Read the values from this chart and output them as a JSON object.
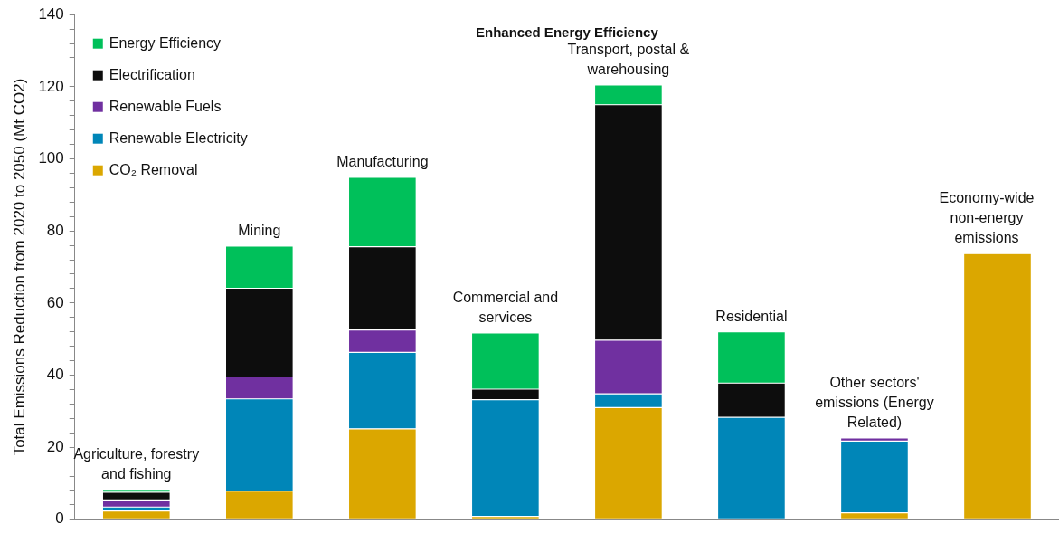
{
  "chart_data": {
    "type": "bar",
    "stacked": true,
    "title": "Enhanced Energy Efficiency",
    "ylabel": "Total Emissions Reduction from 2020 to 2050 (Mt CO2)",
    "categories": [
      "Agriculture, forestry and fishing",
      "Mining",
      "Manufacturing",
      "Commercial and services",
      "Transport, postal & warehousing",
      "Residential",
      "Other sectors' emissions (Energy Related)",
      "Economy-wide non-energy emissions"
    ],
    "series": [
      {
        "name": "CO₂ Removal",
        "color": "#dba700",
        "values": [
          2.3,
          7.8,
          25.1,
          0.8,
          31.0,
          0,
          1.8,
          73.7
        ]
      },
      {
        "name": "Renewable Electricity",
        "color": "#0086b8",
        "values": [
          1.1,
          25.6,
          21.2,
          32.4,
          3.8,
          28.3,
          19.9,
          0
        ]
      },
      {
        "name": "Renewable Fuels",
        "color": "#7030a0",
        "values": [
          2.0,
          6.1,
          6.2,
          0,
          14.9,
          0,
          0.9,
          0
        ]
      },
      {
        "name": "Electrification",
        "color": "#0d0d0d",
        "values": [
          2.1,
          24.6,
          23.1,
          2.9,
          65.3,
          9.5,
          0,
          0
        ]
      },
      {
        "name": "Energy Efficiency",
        "color": "#00c05a",
        "values": [
          0.8,
          11.7,
          19.3,
          15.6,
          5.5,
          14.2,
          0,
          0
        ]
      }
    ],
    "ylim": [
      0,
      140
    ],
    "yticks": [
      0,
      {
        "value": 4,
        "label": null
      },
      {
        "value": 8,
        "label": null
      },
      {
        "value": 12,
        "label": null
      },
      {
        "value": 16,
        "label": null
      },
      20,
      {
        "value": 24,
        "label": null
      },
      {
        "value": 28,
        "label": null
      },
      {
        "value": 32,
        "label": null
      },
      {
        "value": 36,
        "label": null
      },
      40,
      {
        "value": 44,
        "label": null
      },
      {
        "value": 48,
        "label": null
      },
      {
        "value": 52,
        "label": null
      },
      {
        "value": 56,
        "label": null
      },
      60,
      {
        "value": 64,
        "label": null
      },
      {
        "value": 68,
        "label": null
      },
      {
        "value": 72,
        "label": null
      },
      {
        "value": 76,
        "label": null
      },
      80,
      {
        "value": 84,
        "label": null
      },
      {
        "value": 88,
        "label": null
      },
      {
        "value": 92,
        "label": null
      },
      {
        "value": 96,
        "label": null
      },
      100,
      {
        "value": 104,
        "label": null
      },
      {
        "value": 108,
        "label": null
      },
      {
        "value": 112,
        "label": null
      },
      {
        "value": 116,
        "label": null
      },
      120,
      {
        "value": 124,
        "label": null
      },
      {
        "value": 128,
        "label": null
      },
      {
        "value": 132,
        "label": null
      },
      {
        "value": 136,
        "label": null
      },
      140
    ],
    "grid": false,
    "legend": "top left"
  }
}
